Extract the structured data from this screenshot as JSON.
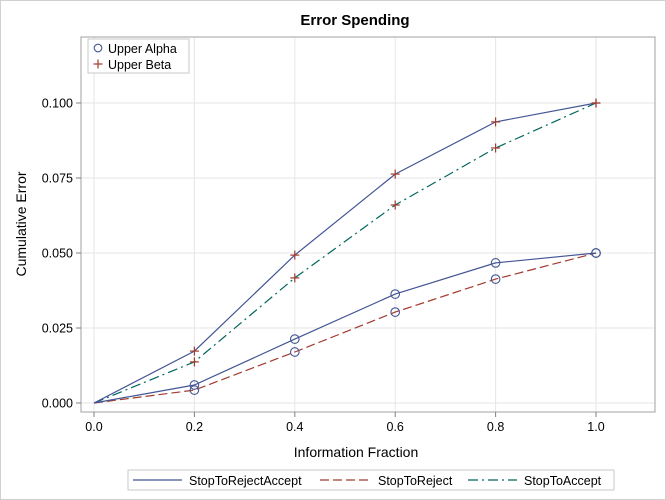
{
  "chart_data": {
    "type": "line",
    "title": "Error Spending",
    "xlabel": "Information Fraction",
    "ylabel": "Cumulative Error",
    "xlim": [
      -0.025,
      1.12
    ],
    "ylim": [
      -0.003,
      0.122
    ],
    "x_ticks": [
      "0.0",
      "0.2",
      "0.4",
      "0.6",
      "0.8",
      "1.0"
    ],
    "y_ticks": [
      "0.000",
      "0.025",
      "0.050",
      "0.075",
      "0.100"
    ],
    "grid": true,
    "x": [
      0.0,
      0.2,
      0.4,
      0.6,
      0.8,
      1.0
    ],
    "series": [
      {
        "name": "StopToRejectAccept",
        "group": "Upper Alpha",
        "marker": "circle",
        "line": "solid",
        "color": "#445694",
        "values": [
          0.0,
          0.006,
          0.0213,
          0.0363,
          0.0467,
          0.05
        ]
      },
      {
        "name": "StopToRejectAccept",
        "group": "Upper Beta",
        "marker": "plus",
        "line": "solid",
        "color": "#445694",
        "values": [
          0.0,
          0.0173,
          0.0493,
          0.0763,
          0.0937,
          0.1
        ]
      },
      {
        "name": "StopToReject",
        "group": "Upper Alpha",
        "marker": "circle",
        "line": "dash",
        "color": "#A23A2E",
        "values": [
          0.0,
          0.0043,
          0.017,
          0.0303,
          0.0413,
          0.05
        ]
      },
      {
        "name": "StopToAccept",
        "group": "Upper Beta",
        "marker": "plus",
        "line": "dashdot",
        "color": "#01665E",
        "values": [
          0.0,
          0.0137,
          0.0417,
          0.066,
          0.085,
          0.1
        ]
      }
    ],
    "marker_legend": [
      {
        "label": "Upper Alpha",
        "symbol": "circle",
        "color": "#445694"
      },
      {
        "label": "Upper Beta",
        "symbol": "plus",
        "color": "#A23A2E"
      }
    ],
    "line_legend": [
      {
        "label": "StopToRejectAccept",
        "style": "solid",
        "color": "#445694"
      },
      {
        "label": "StopToReject",
        "style": "dash",
        "color": "#A23A2E"
      },
      {
        "label": "StopToAccept",
        "style": "dashdot",
        "color": "#01665E"
      }
    ],
    "legend_position": "inset top-left (markers), bottom outside (lines)"
  }
}
